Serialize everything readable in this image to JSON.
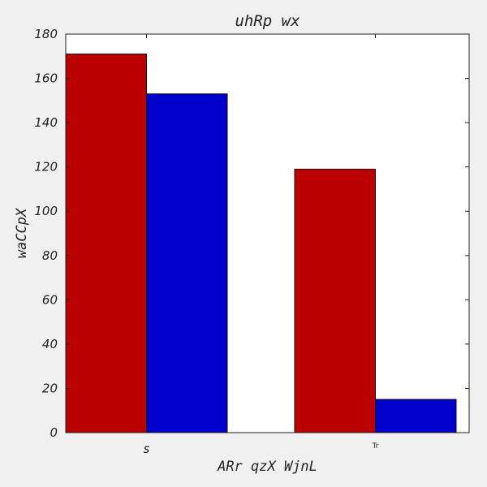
{
  "chart_data": {
    "type": "bar",
    "title": "uhRp  wx",
    "xlabel": "ARr qzX WjnL",
    "ylabel": "waCCpX",
    "categories": [
      "s",
      "Tr"
    ],
    "series": [
      {
        "values": [
          171,
          153
        ]
      },
      {
        "values": [
          119,
          15
        ]
      }
    ],
    "colors": [
      "#bb0000",
      "#0000cc"
    ],
    "ylim": [
      0,
      180
    ],
    "yticks": [
      0,
      20,
      40,
      60,
      80,
      100,
      120,
      140,
      160,
      180
    ],
    "grid": false
  }
}
